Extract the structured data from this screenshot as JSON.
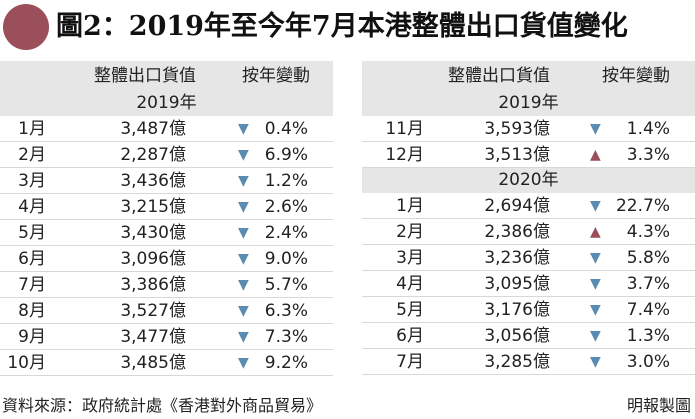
{
  "title": "圖2：2019年至今年7月本港整體出口貨值變化",
  "columns": {
    "value": "整體出口貨值",
    "change": "按年變動"
  },
  "colors": {
    "accent": "#9b4f5b",
    "down": "#5a8bb0",
    "up": "#9b4f5b",
    "band": "#e6e6e6"
  },
  "left_panel": {
    "year": "2019年",
    "rows": [
      {
        "month": "1月",
        "value": "3,487億",
        "dir": "down",
        "arrow": "▼",
        "pct": "0.4%"
      },
      {
        "month": "2月",
        "value": "2,287億",
        "dir": "down",
        "arrow": "▼",
        "pct": "6.9%"
      },
      {
        "month": "3月",
        "value": "3,436億",
        "dir": "down",
        "arrow": "▼",
        "pct": "1.2%"
      },
      {
        "month": "4月",
        "value": "3,215億",
        "dir": "down",
        "arrow": "▼",
        "pct": "2.6%"
      },
      {
        "month": "5月",
        "value": "3,430億",
        "dir": "down",
        "arrow": "▼",
        "pct": "2.4%"
      },
      {
        "month": "6月",
        "value": "3,096億",
        "dir": "down",
        "arrow": "▼",
        "pct": "9.0%"
      },
      {
        "month": "7月",
        "value": "3,386億",
        "dir": "down",
        "arrow": "▼",
        "pct": "5.7%"
      },
      {
        "month": "8月",
        "value": "3,527億",
        "dir": "down",
        "arrow": "▼",
        "pct": "6.3%"
      },
      {
        "month": "9月",
        "value": "3,477億",
        "dir": "down",
        "arrow": "▼",
        "pct": "7.3%"
      },
      {
        "month": "10月",
        "value": "3,485億",
        "dir": "down",
        "arrow": "▼",
        "pct": "9.2%"
      }
    ]
  },
  "right_panel": {
    "year_2019": "2019年",
    "rows_2019": [
      {
        "month": "11月",
        "value": "3,593億",
        "dir": "down",
        "arrow": "▼",
        "pct": "1.4%"
      },
      {
        "month": "12月",
        "value": "3,513億",
        "dir": "up",
        "arrow": "▲",
        "pct": "3.3%"
      }
    ],
    "year_2020": "2020年",
    "rows_2020": [
      {
        "month": "1月",
        "value": "2,694億",
        "dir": "down",
        "arrow": "▼",
        "pct": "22.7%"
      },
      {
        "month": "2月",
        "value": "2,386億",
        "dir": "up",
        "arrow": "▲",
        "pct": "4.3%"
      },
      {
        "month": "3月",
        "value": "3,236億",
        "dir": "down",
        "arrow": "▼",
        "pct": "5.8%"
      },
      {
        "month": "4月",
        "value": "3,095億",
        "dir": "down",
        "arrow": "▼",
        "pct": "3.7%"
      },
      {
        "month": "5月",
        "value": "3,176億",
        "dir": "down",
        "arrow": "▼",
        "pct": "7.4%"
      },
      {
        "month": "6月",
        "value": "3,056億",
        "dir": "down",
        "arrow": "▼",
        "pct": "1.3%"
      },
      {
        "month": "7月",
        "value": "3,285億",
        "dir": "down",
        "arrow": "▼",
        "pct": "3.0%"
      }
    ]
  },
  "footer": {
    "source": "資料來源：政府統計處《香港對外商品貿易》",
    "credit": "明報製圖"
  }
}
